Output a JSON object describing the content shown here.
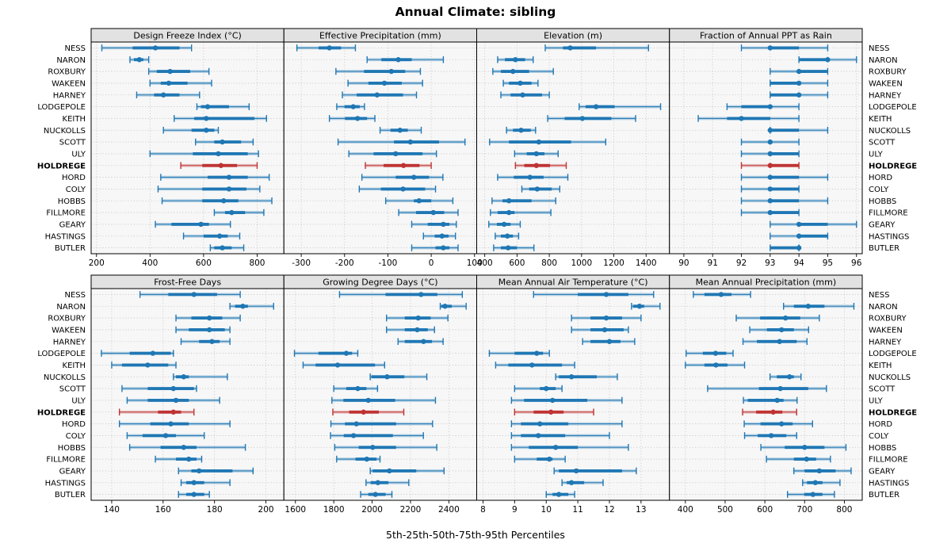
{
  "title": "Annual Climate: sibling",
  "caption": "5th-25th-50th-75th-95th Percentiles",
  "highlight_station": "HOLDREGE",
  "stations": [
    "NESS",
    "NARON",
    "ROXBURY",
    "WAKEEN",
    "HARNEY",
    "LODGEPOLE",
    "KEITH",
    "NUCKOLLS",
    "SCOTT",
    "ULY",
    "HOLDREGE",
    "HORD",
    "COLY",
    "HOBBS",
    "FILLMORE",
    "GEARY",
    "HASTINGS",
    "BUTLER"
  ],
  "colors": {
    "series": "#1f77b4",
    "highlight": "#bf3333",
    "strip_bg": "#e2e2e2",
    "panel_bg": "#f7f7f7",
    "grid": "#bdbdbd",
    "border": "#000000"
  },
  "chart_data": {
    "type": "dotplot-interval",
    "percentiles": [
      "5th",
      "25th",
      "50th",
      "75th",
      "95th"
    ],
    "layout": {
      "rows": 2,
      "cols": 4,
      "legend_position": "none",
      "grid": "dotted"
    },
    "panels": [
      {
        "title": "Design Freeze Index (°C)",
        "xlim": [
          180,
          900
        ],
        "ticks": [
          200,
          400,
          600,
          800
        ],
        "values": [
          [
            220,
            335,
            420,
            510,
            555
          ],
          [
            325,
            340,
            360,
            375,
            395
          ],
          [
            395,
            425,
            475,
            550,
            620
          ],
          [
            400,
            440,
            470,
            540,
            630
          ],
          [
            350,
            415,
            450,
            510,
            585
          ],
          [
            575,
            590,
            615,
            695,
            770
          ],
          [
            490,
            565,
            610,
            790,
            835
          ],
          [
            450,
            555,
            610,
            640,
            655
          ],
          [
            570,
            640,
            670,
            740,
            785
          ],
          [
            400,
            560,
            655,
            765,
            805
          ],
          [
            515,
            595,
            665,
            725,
            800
          ],
          [
            440,
            615,
            695,
            765,
            845
          ],
          [
            430,
            595,
            695,
            760,
            810
          ],
          [
            445,
            595,
            675,
            730,
            855
          ],
          [
            640,
            680,
            705,
            755,
            825
          ],
          [
            420,
            480,
            590,
            620,
            700
          ],
          [
            525,
            600,
            660,
            690,
            735
          ],
          [
            625,
            640,
            670,
            705,
            750
          ]
        ]
      },
      {
        "title": "Effective Precipitation (mm)",
        "xlim": [
          -340,
          105
        ],
        "ticks": [
          -300,
          -200,
          -100,
          0,
          100
        ],
        "values": [
          [
            -310,
            -260,
            -235,
            -208,
            -175
          ],
          [
            -148,
            -115,
            -76,
            -45,
            28
          ],
          [
            -220,
            -155,
            -92,
            -60,
            -25
          ],
          [
            -192,
            -145,
            -108,
            -68,
            -20
          ],
          [
            -205,
            -172,
            -125,
            -65,
            -34
          ],
          [
            -218,
            -200,
            -180,
            -165,
            -154
          ],
          [
            -235,
            -199,
            -170,
            -148,
            -130
          ],
          [
            -118,
            -94,
            -72,
            -54,
            -23
          ],
          [
            -215,
            -86,
            -48,
            18,
            78
          ],
          [
            -190,
            -133,
            -82,
            -20,
            12
          ],
          [
            -152,
            -110,
            -64,
            -27,
            0
          ],
          [
            -160,
            -82,
            -40,
            -5,
            27
          ],
          [
            -166,
            -116,
            -65,
            -14,
            10
          ],
          [
            -105,
            -40,
            -28,
            0,
            50
          ],
          [
            -75,
            -35,
            5,
            30,
            62
          ],
          [
            -45,
            -8,
            28,
            42,
            58
          ],
          [
            -18,
            8,
            25,
            40,
            56
          ],
          [
            -45,
            10,
            28,
            42,
            62
          ]
        ]
      },
      {
        "title": "Elevation (m)",
        "xlim": [
          350,
          1545
        ],
        "ticks": [
          400,
          600,
          800,
          1000,
          1200,
          1400
        ],
        "values": [
          [
            775,
            885,
            930,
            1090,
            1415
          ],
          [
            480,
            525,
            590,
            650,
            700
          ],
          [
            450,
            500,
            575,
            675,
            825
          ],
          [
            515,
            550,
            620,
            690,
            730
          ],
          [
            500,
            560,
            635,
            755,
            800
          ],
          [
            985,
            1025,
            1090,
            1205,
            1490
          ],
          [
            790,
            895,
            1005,
            1185,
            1335
          ],
          [
            535,
            575,
            625,
            685,
            715
          ],
          [
            430,
            550,
            735,
            935,
            1150
          ],
          [
            585,
            660,
            720,
            770,
            855
          ],
          [
            590,
            645,
            720,
            805,
            905
          ],
          [
            480,
            580,
            680,
            765,
            915
          ],
          [
            630,
            675,
            725,
            815,
            865
          ],
          [
            445,
            510,
            550,
            690,
            840
          ],
          [
            435,
            480,
            550,
            585,
            810
          ],
          [
            425,
            475,
            520,
            560,
            620
          ],
          [
            465,
            500,
            540,
            575,
            610
          ],
          [
            455,
            500,
            545,
            600,
            705
          ]
        ]
      },
      {
        "title": "Fraction of Annual PPT as Rain",
        "xlim": [
          89.5,
          96.2
        ],
        "ticks": [
          90,
          91,
          92,
          93,
          94,
          95,
          96
        ],
        "values": [
          [
            92,
            93,
            93,
            94,
            95
          ],
          [
            94,
            94,
            95,
            95,
            96
          ],
          [
            93,
            94,
            94,
            95,
            95
          ],
          [
            93,
            93,
            94,
            94,
            95
          ],
          [
            93,
            93,
            94,
            94,
            95
          ],
          [
            91.5,
            92,
            93,
            93,
            94
          ],
          [
            90.5,
            91.5,
            92,
            93,
            94
          ],
          [
            93,
            93,
            93,
            94,
            95
          ],
          [
            92,
            93,
            93,
            93,
            94
          ],
          [
            92,
            93,
            93,
            94,
            94
          ],
          [
            92,
            93,
            93,
            94,
            94
          ],
          [
            92,
            93,
            93,
            94,
            95
          ],
          [
            92,
            93,
            93,
            94,
            94
          ],
          [
            92,
            93,
            93,
            94,
            95
          ],
          [
            92,
            93,
            93,
            94,
            94
          ],
          [
            93,
            94,
            94,
            95,
            96
          ],
          [
            93,
            94,
            94,
            95,
            95
          ],
          [
            93,
            93,
            94,
            94,
            94
          ]
        ]
      },
      {
        "title": "Frost-Free Days",
        "xlim": [
          132,
          207
        ],
        "ticks": [
          140,
          160,
          180,
          200
        ],
        "values": [
          [
            151,
            162,
            172,
            181,
            190
          ],
          [
            186,
            188,
            191,
            193,
            203
          ],
          [
            165,
            171,
            178,
            183,
            190
          ],
          [
            165,
            170,
            178,
            184,
            186
          ],
          [
            167,
            174,
            179,
            182,
            186
          ],
          [
            136,
            147,
            156,
            163,
            164
          ],
          [
            140,
            144,
            154,
            162,
            165
          ],
          [
            164,
            165,
            168,
            170,
            185
          ],
          [
            144,
            154,
            164,
            172,
            173
          ],
          [
            146,
            154,
            165,
            170,
            182
          ],
          [
            143,
            158,
            164,
            167,
            172
          ],
          [
            143,
            155,
            163,
            170,
            186
          ],
          [
            146,
            152,
            161,
            165,
            176
          ],
          [
            147,
            159,
            168,
            173,
            192
          ],
          [
            157,
            165,
            170,
            173,
            175
          ],
          [
            166,
            171,
            174,
            187,
            195
          ],
          [
            167,
            169,
            172,
            176,
            186
          ],
          [
            166,
            169,
            172,
            176,
            178
          ]
        ]
      },
      {
        "title": "Growing Degree Days (°C)",
        "xlim": [
          1540,
          2545
        ],
        "ticks": [
          1600,
          1800,
          2000,
          2200,
          2400
        ],
        "values": [
          [
            1830,
            2070,
            2255,
            2340,
            2470
          ],
          [
            2355,
            2360,
            2380,
            2415,
            2490
          ],
          [
            2075,
            2170,
            2240,
            2305,
            2395
          ],
          [
            2075,
            2170,
            2235,
            2290,
            2325
          ],
          [
            2135,
            2170,
            2268,
            2312,
            2370
          ],
          [
            1595,
            1720,
            1865,
            1895,
            1925
          ],
          [
            1640,
            1705,
            1820,
            2015,
            2065
          ],
          [
            1990,
            1996,
            2078,
            2168,
            2285
          ],
          [
            1800,
            1865,
            1925,
            1970,
            2028
          ],
          [
            1790,
            1850,
            1980,
            2120,
            2330
          ],
          [
            1795,
            1880,
            1955,
            2035,
            2165
          ],
          [
            1785,
            1858,
            1918,
            2125,
            2315
          ],
          [
            1783,
            1852,
            1903,
            2108,
            2267
          ],
          [
            1805,
            1930,
            2003,
            2125,
            2337
          ],
          [
            1815,
            1913,
            1972,
            2023,
            2041
          ],
          [
            1990,
            2003,
            2090,
            2230,
            2375
          ],
          [
            1968,
            1992,
            2030,
            2085,
            2191
          ],
          [
            1940,
            1980,
            2017,
            2070,
            2103
          ]
        ]
      },
      {
        "title": "Mean Annual Air Temperature (°C)",
        "xlim": [
          7.8,
          13.9
        ],
        "ticks": [
          8,
          9,
          10,
          11,
          12,
          13
        ],
        "values": [
          [
            9.6,
            11.0,
            11.9,
            12.6,
            13.4
          ],
          [
            12.7,
            12.75,
            12.95,
            13.1,
            13.6
          ],
          [
            10.8,
            11.4,
            11.9,
            12.4,
            13.0
          ],
          [
            10.8,
            11.4,
            11.85,
            12.45,
            12.6
          ],
          [
            11.15,
            11.4,
            12.0,
            12.35,
            12.8
          ],
          [
            8.2,
            9.0,
            9.7,
            9.9,
            10.1
          ],
          [
            8.4,
            8.8,
            9.55,
            10.5,
            10.9
          ],
          [
            10.3,
            10.4,
            10.8,
            11.6,
            12.25
          ],
          [
            9.0,
            9.8,
            10.0,
            10.3,
            10.5
          ],
          [
            8.9,
            9.3,
            10.2,
            11.3,
            12.4
          ],
          [
            9.0,
            9.6,
            10.15,
            10.55,
            11.5
          ],
          [
            8.9,
            9.2,
            9.8,
            10.7,
            12.4
          ],
          [
            8.9,
            9.2,
            9.75,
            10.6,
            12.0
          ],
          [
            8.9,
            9.45,
            10.3,
            11.0,
            12.6
          ],
          [
            9.0,
            9.7,
            10.1,
            10.2,
            10.6
          ],
          [
            10.25,
            10.4,
            10.95,
            12.4,
            12.85
          ],
          [
            10.5,
            10.65,
            10.8,
            11.2,
            11.8
          ],
          [
            10.0,
            10.2,
            10.4,
            10.7,
            10.9
          ]
        ]
      },
      {
        "title": "Mean Annual Precipitation (mm)",
        "xlim": [
          360,
          845
        ],
        "ticks": [
          400,
          500,
          600,
          700,
          800
        ],
        "values": [
          [
            420,
            448,
            490,
            516,
            564
          ],
          [
            647,
            673,
            709,
            750,
            824
          ],
          [
            528,
            588,
            652,
            689,
            737
          ],
          [
            562,
            605,
            642,
            673,
            710
          ],
          [
            545,
            580,
            637,
            680,
            706
          ],
          [
            402,
            444,
            476,
            503,
            520
          ],
          [
            400,
            448,
            477,
            506,
            549
          ],
          [
            613,
            630,
            662,
            673,
            691
          ],
          [
            456,
            585,
            639,
            709,
            755
          ],
          [
            546,
            557,
            631,
            647,
            681
          ],
          [
            544,
            578,
            621,
            644,
            680
          ],
          [
            548,
            589,
            642,
            670,
            720
          ],
          [
            549,
            582,
            616,
            654,
            680
          ],
          [
            590,
            650,
            700,
            750,
            804
          ],
          [
            604,
            673,
            705,
            729,
            765
          ],
          [
            673,
            700,
            737,
            778,
            817
          ],
          [
            695,
            706,
            727,
            745,
            789
          ],
          [
            657,
            699,
            721,
            745,
            775
          ]
        ]
      }
    ]
  }
}
